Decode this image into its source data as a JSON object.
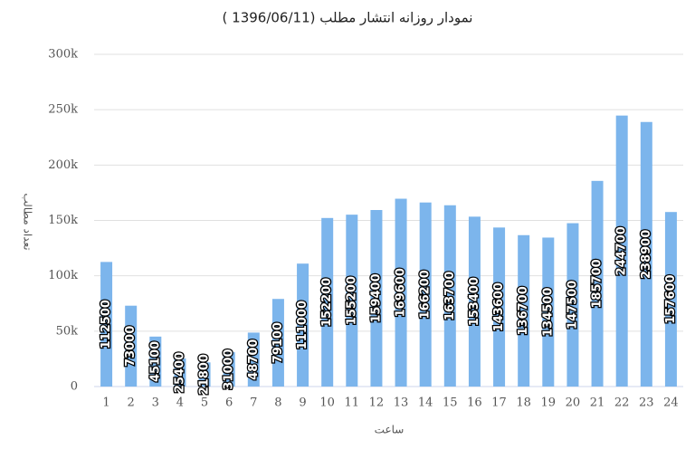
{
  "chart_data": {
    "type": "bar",
    "title": "نمودار روزانه انتشار مطلب (1396/06/11 )",
    "x_label": "ساعت",
    "y_label": "تعداد مطالب",
    "categories": [
      "1",
      "2",
      "3",
      "4",
      "5",
      "6",
      "7",
      "8",
      "9",
      "10",
      "11",
      "12",
      "13",
      "14",
      "15",
      "16",
      "17",
      "18",
      "19",
      "20",
      "21",
      "22",
      "23",
      "24"
    ],
    "values": [
      112500,
      73000,
      45100,
      25400,
      21800,
      31000,
      48700,
      79100,
      111000,
      152200,
      155200,
      159400,
      169600,
      166200,
      163700,
      153400,
      143600,
      136700,
      134500,
      147500,
      185700,
      244700,
      238900,
      157600
    ],
    "color": "#7cb5ec",
    "ylim": [
      0,
      300000
    ],
    "yticks": [
      0,
      {
        "value": 50000,
        "label": "50k"
      },
      {
        "value": 100000,
        "label": "100k"
      },
      {
        "value": 150000,
        "label": "150k"
      },
      {
        "value": 200000,
        "label": "200k"
      },
      {
        "value": 250000,
        "label": "250k"
      },
      {
        "value": 300000,
        "label": "300k"
      }
    ],
    "grid": true
  }
}
